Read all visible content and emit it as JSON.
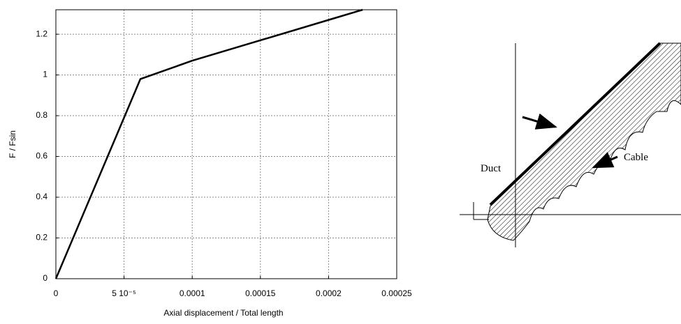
{
  "chart_data": {
    "type": "line",
    "x_label": "Axial displacement / Total length",
    "y_label": "F / Fsin",
    "x": [
      0,
      6.2e-05,
      0.0001,
      0.00015,
      0.0002,
      0.000225
    ],
    "series": [
      {
        "color": "#000000",
        "values": [
          0,
          0.98,
          1.07,
          1.17,
          1.27,
          1.32
        ]
      }
    ],
    "xlim": [
      0,
      0.00025
    ],
    "xticks": [
      0,
      {
        "value": 5e-05,
        "label": "5 10⁻⁵"
      },
      0.0001,
      0.00015,
      0.0002,
      0.00025
    ],
    "ylim": [
      0,
      1.32
    ],
    "yticks": [
      0,
      0.2,
      0.4,
      0.6,
      0.8,
      1,
      1.2
    ],
    "grid": true
  },
  "diagram": {
    "duct_label": "Duct",
    "cable_label": "Cable"
  }
}
